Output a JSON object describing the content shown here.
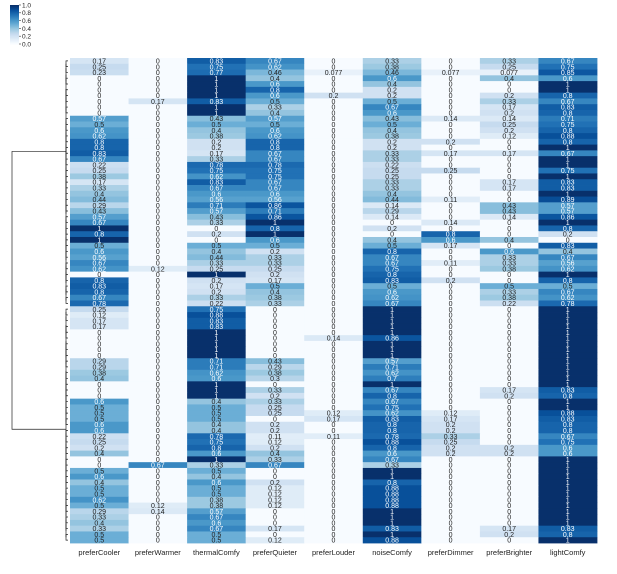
{
  "chart_data": {
    "type": "heatmap",
    "title": "",
    "xlabel": "",
    "ylabel": "",
    "value_range": [
      0,
      1
    ],
    "colormap": [
      "#f7fbff",
      "#deebf7",
      "#c6dbef",
      "#9ecae1",
      "#6baed6",
      "#4292c6",
      "#2171b5",
      "#08519c",
      "#08306b"
    ],
    "grid": false,
    "colorbar": {
      "position": "top-left",
      "ticks": [
        1.0,
        0.8,
        0.6,
        0.4,
        0.2,
        0.0
      ],
      "tick_labels": [
        "1.0",
        "0.8",
        "0.6",
        "0.4",
        "0.2",
        "0.0"
      ]
    },
    "dendrogram": "left",
    "columns": [
      "preferCooler",
      "preferWarmer",
      "thermalComfy",
      "preferQuieter",
      "preferLouder",
      "noiseComfy",
      "preferDimmer",
      "preferBrighter",
      "lightComfy"
    ],
    "rows": [
      [
        0.17,
        0,
        0.83,
        0.67,
        0,
        0.33,
        0,
        0.33,
        0.67
      ],
      [
        0.25,
        0,
        0.75,
        0.62,
        0,
        0.38,
        0,
        0.25,
        0.75
      ],
      [
        0.23,
        0,
        0.77,
        0.46,
        0.077,
        0.46,
        0.077,
        0.077,
        0.85
      ],
      [
        0,
        0,
        1,
        0.4,
        0,
        0.6,
        0,
        0.4,
        0.6
      ],
      [
        0,
        0,
        1,
        0.6,
        0,
        0.4,
        0,
        0,
        1
      ],
      [
        0,
        0,
        1,
        0.8,
        0,
        0.2,
        0,
        0,
        1
      ],
      [
        0,
        0,
        1,
        0.6,
        0.2,
        0.2,
        0,
        0.2,
        0.8
      ],
      [
        0,
        0.17,
        0.83,
        0.5,
        0,
        0.5,
        0,
        0.33,
        0.67
      ],
      [
        0,
        0,
        1,
        0.33,
        0,
        0.67,
        0,
        0.17,
        0.83
      ],
      [
        0,
        0,
        1,
        0.4,
        0,
        0.6,
        0,
        0.2,
        0.8
      ],
      [
        0.57,
        0,
        0.43,
        0.57,
        0,
        0.43,
        0.14,
        0.14,
        0.71
      ],
      [
        0.5,
        0,
        0.5,
        0.5,
        0,
        0.5,
        0,
        0.25,
        0.75
      ],
      [
        0.6,
        0,
        0.4,
        0.6,
        0,
        0.4,
        0,
        0.2,
        0.8
      ],
      [
        0.62,
        0,
        0.38,
        0.62,
        0,
        0.38,
        0,
        0.12,
        0.88
      ],
      [
        0.8,
        0,
        0.2,
        0.8,
        0,
        0.2,
        0.2,
        0,
        0.8
      ],
      [
        0.8,
        0,
        0.2,
        0.8,
        0,
        0.2,
        0,
        0,
        1
      ],
      [
        0.83,
        0,
        0.17,
        0.67,
        0,
        0.33,
        0.17,
        0.17,
        0.67
      ],
      [
        0.67,
        0,
        0.33,
        0.67,
        0,
        0.33,
        0,
        0,
        1
      ],
      [
        0.22,
        0,
        0.78,
        0.78,
        0,
        0.22,
        0,
        0,
        1
      ],
      [
        0.25,
        0,
        0.75,
        0.75,
        0,
        0.25,
        0.25,
        0,
        0.75
      ],
      [
        0.38,
        0,
        0.62,
        0.75,
        0,
        0.25,
        0,
        0,
        1
      ],
      [
        0.17,
        0,
        0.83,
        0.67,
        0,
        0.33,
        0,
        0.17,
        0.83
      ],
      [
        0.33,
        0,
        0.67,
        0.67,
        0,
        0.33,
        0,
        0.17,
        0.83
      ],
      [
        0.4,
        0,
        0.6,
        0.6,
        0,
        0.4,
        0,
        0,
        1
      ],
      [
        0.44,
        0,
        0.56,
        0.56,
        0,
        0.44,
        0.11,
        0,
        0.89
      ],
      [
        0.29,
        0,
        0.71,
        0.86,
        0,
        0.14,
        0,
        0.43,
        0.57
      ],
      [
        0.43,
        0,
        0.57,
        0.71,
        0,
        0.29,
        0,
        0.43,
        0.57
      ],
      [
        0.57,
        0,
        0.43,
        0.86,
        0,
        0.14,
        0,
        0.14,
        0.86
      ],
      [
        0.67,
        0,
        0.33,
        1,
        0,
        0,
        0.14,
        0,
        1
      ],
      [
        1,
        0,
        0,
        0.8,
        0,
        0.2,
        0,
        0,
        0.8
      ],
      [
        0.8,
        0,
        0.2,
        1,
        0,
        0,
        0.8,
        0,
        0.2
      ],
      [
        1,
        0,
        0,
        0.6,
        0,
        0.4,
        0.6,
        0.4,
        0
      ],
      [
        0.5,
        0,
        0.5,
        0.5,
        0,
        0.5,
        0.17,
        0,
        0.83
      ],
      [
        0.6,
        0,
        0.4,
        0.2,
        0,
        0.8,
        0,
        0.6,
        0.4
      ],
      [
        0.56,
        0,
        0.44,
        0.33,
        0,
        0.67,
        0,
        0.33,
        0.67
      ],
      [
        0.67,
        0,
        0.33,
        0.33,
        0,
        0.67,
        0.11,
        0.33,
        0.56
      ],
      [
        0.62,
        0.12,
        0.25,
        0.25,
        0,
        0.75,
        0,
        0.38,
        0.62
      ],
      [
        0,
        0,
        1,
        0.2,
        0,
        0.8,
        0,
        0,
        1
      ],
      [
        0.8,
        0,
        0.2,
        0.17,
        0,
        0.83,
        0.2,
        0,
        0.8
      ],
      [
        0.83,
        0,
        0.17,
        0.5,
        0,
        0.5,
        0,
        0.5,
        0.5
      ],
      [
        0.8,
        0,
        0.2,
        0.4,
        0,
        0.6,
        0,
        0.33,
        0.67
      ],
      [
        0.67,
        0,
        0.33,
        0.38,
        0,
        0.62,
        0,
        0.38,
        0.62
      ],
      [
        0.78,
        0,
        0.22,
        0.33,
        0,
        0.67,
        0,
        0.22,
        0.78
      ],
      [
        0.25,
        0,
        0.75,
        0,
        0,
        1,
        0,
        0,
        1
      ],
      [
        0.12,
        0,
        0.88,
        0,
        0,
        1,
        0,
        0,
        1
      ],
      [
        0.17,
        0,
        0.83,
        0,
        0,
        1,
        0,
        0,
        1
      ],
      [
        0.17,
        0,
        0.83,
        0,
        0,
        1,
        0,
        0,
        1
      ],
      [
        0,
        0,
        1,
        0,
        0,
        1,
        0,
        0,
        1
      ],
      [
        0,
        0,
        1,
        0,
        0.14,
        0.86,
        0,
        0,
        1
      ],
      [
        0,
        0,
        1,
        0,
        0,
        1,
        0,
        0,
        1
      ],
      [
        0,
        0,
        1,
        0,
        0,
        1,
        0,
        0,
        1
      ],
      [
        0,
        0,
        1,
        0,
        0,
        1,
        0,
        0,
        1
      ],
      [
        0.29,
        0,
        0.71,
        0.43,
        0,
        0.57,
        0,
        0,
        1
      ],
      [
        0.29,
        0,
        0.71,
        0.29,
        0,
        0.71,
        0,
        0,
        1
      ],
      [
        0.38,
        0,
        0.62,
        0.38,
        0,
        0.62,
        0,
        0,
        1
      ],
      [
        0.4,
        0,
        0.6,
        0.3,
        0,
        0.7,
        0,
        0,
        1
      ],
      [
        0,
        0,
        1,
        0,
        0,
        1,
        0,
        0,
        1
      ],
      [
        0,
        0,
        1,
        0.33,
        0,
        0.67,
        0,
        0.17,
        0.83
      ],
      [
        0,
        0,
        1,
        0.2,
        0,
        0.8,
        0,
        0.2,
        0.8
      ],
      [
        0.6,
        0,
        0.4,
        0.33,
        0,
        0.67,
        0,
        0,
        1
      ],
      [
        0.5,
        0,
        0.5,
        0.25,
        0,
        0.75,
        0,
        0,
        1
      ],
      [
        0.5,
        0,
        0.5,
        0.25,
        0.12,
        0.62,
        0.12,
        0,
        0.88
      ],
      [
        0.5,
        0,
        0.5,
        0,
        0.17,
        0.83,
        0.17,
        0,
        0.83
      ],
      [
        0.6,
        0,
        0.4,
        0.2,
        0,
        0.8,
        0.2,
        0,
        0.8
      ],
      [
        0.6,
        0,
        0.4,
        0.2,
        0,
        0.8,
        0.2,
        0,
        0.8
      ],
      [
        0.22,
        0,
        0.78,
        0.11,
        0.11,
        0.78,
        0.33,
        0,
        0.67
      ],
      [
        0.25,
        0,
        0.75,
        0.12,
        0,
        0.88,
        0.25,
        0,
        0.75
      ],
      [
        0.2,
        0,
        0.8,
        0.2,
        0,
        0.8,
        0.2,
        0.2,
        0.6
      ],
      [
        0.4,
        0,
        0.6,
        0.4,
        0,
        0.6,
        0.2,
        0.2,
        0.6
      ],
      [
        0,
        0,
        1,
        0.33,
        0,
        0.67,
        0,
        0,
        1
      ],
      [
        0,
        0.67,
        0.33,
        0.67,
        0,
        0.33,
        0,
        0,
        1
      ],
      [
        0.5,
        0,
        0.5,
        0,
        0,
        1,
        0,
        0,
        1
      ],
      [
        0.6,
        0,
        0.4,
        0,
        0,
        1,
        0,
        0,
        1
      ],
      [
        0.4,
        0,
        0.6,
        0.2,
        0,
        0.8,
        0,
        0,
        1
      ],
      [
        0.5,
        0,
        0.5,
        0.12,
        0,
        0.88,
        0,
        0,
        1
      ],
      [
        0.5,
        0,
        0.5,
        0.12,
        0,
        0.88,
        0,
        0,
        1
      ],
      [
        0.62,
        0,
        0.38,
        0.12,
        0,
        0.88,
        0,
        0,
        1
      ],
      [
        0.5,
        0.12,
        0.38,
        0.12,
        0,
        0.88,
        0,
        0,
        1
      ],
      [
        0.29,
        0.14,
        0.57,
        0,
        0,
        1,
        0,
        0,
        1
      ],
      [
        0.33,
        0,
        0.67,
        0,
        0,
        1,
        0,
        0,
        1
      ],
      [
        0.4,
        0,
        0.6,
        0,
        0,
        1,
        0,
        0,
        1
      ],
      [
        0.33,
        0,
        0.67,
        0.17,
        0,
        0.83,
        0,
        0.17,
        0.83
      ],
      [
        0.5,
        0,
        0.5,
        0,
        0,
        1,
        0,
        0.2,
        0.8
      ],
      [
        0.5,
        0,
        0.5,
        0.12,
        0,
        0.88,
        0,
        0,
        1
      ]
    ]
  }
}
